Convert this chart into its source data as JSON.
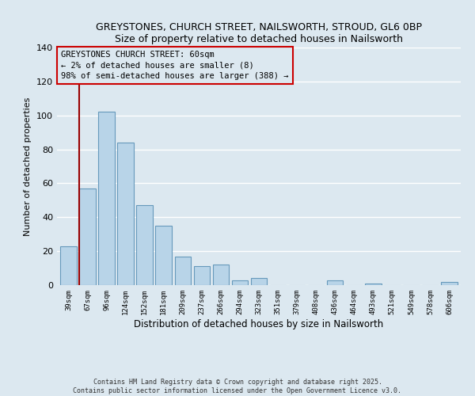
{
  "title": "GREYSTONES, CHURCH STREET, NAILSWORTH, STROUD, GL6 0BP",
  "subtitle": "Size of property relative to detached houses in Nailsworth",
  "xlabel": "Distribution of detached houses by size in Nailsworth",
  "ylabel": "Number of detached properties",
  "bar_labels": [
    "39sqm",
    "67sqm",
    "96sqm",
    "124sqm",
    "152sqm",
    "181sqm",
    "209sqm",
    "237sqm",
    "266sqm",
    "294sqm",
    "323sqm",
    "351sqm",
    "379sqm",
    "408sqm",
    "436sqm",
    "464sqm",
    "493sqm",
    "521sqm",
    "549sqm",
    "578sqm",
    "606sqm"
  ],
  "bar_values": [
    23,
    57,
    102,
    84,
    47,
    35,
    17,
    11,
    12,
    3,
    4,
    0,
    0,
    0,
    3,
    0,
    1,
    0,
    0,
    0,
    2
  ],
  "bar_color": "#b8d4e8",
  "bar_edge_color": "#6699bb",
  "ylim": [
    0,
    140
  ],
  "yticks": [
    0,
    20,
    40,
    60,
    80,
    100,
    120,
    140
  ],
  "marker_color": "#990000",
  "annotation_box_text": "GREYSTONES CHURCH STREET: 60sqm\n← 2% of detached houses are smaller (8)\n98% of semi-detached houses are larger (388) →",
  "annotation_box_color": "#cc0000",
  "background_color": "#dce8f0",
  "plot_bg_color": "#dce8f0",
  "footer_line1": "Contains HM Land Registry data © Crown copyright and database right 2025.",
  "footer_line2": "Contains public sector information licensed under the Open Government Licence v3.0.",
  "title_fontsize": 9,
  "subtitle_fontsize": 9
}
